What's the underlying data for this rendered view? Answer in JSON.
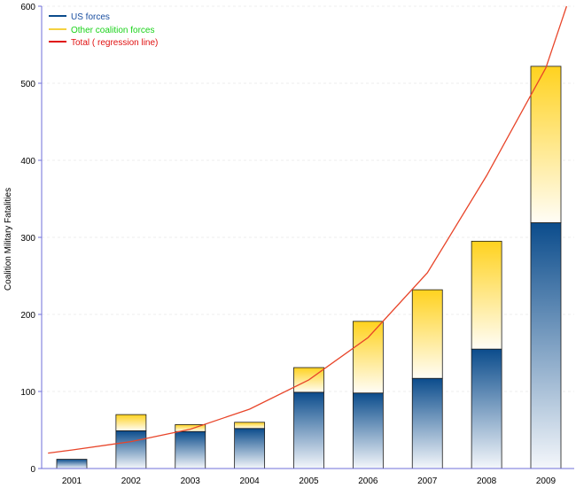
{
  "chart_data": {
    "type": "bar",
    "stacked": true,
    "title": "",
    "xlabel": "",
    "ylabel": "Coalition Military Fatalities",
    "categories": [
      "2001",
      "2002",
      "2003",
      "2004",
      "2005",
      "2006",
      "2007",
      "2008",
      "2009"
    ],
    "series": [
      {
        "name": "US forces",
        "values": [
          12,
          49,
          48,
          52,
          99,
          98,
          117,
          155,
          319
        ]
      },
      {
        "name": "Other coalition forces",
        "values": [
          0,
          21,
          9,
          8,
          32,
          93,
          115,
          140,
          203
        ]
      }
    ],
    "regression": {
      "name": "Total ( regression line)",
      "type": "exponential",
      "x": [
        "2000.6",
        "2001",
        "2002",
        "2003",
        "2004",
        "2005",
        "2006",
        "2007",
        "2008",
        "2009",
        "2009.35"
      ],
      "y": [
        20,
        24,
        35,
        51,
        77,
        115,
        170,
        254,
        380,
        520,
        600
      ]
    },
    "ylim": [
      0,
      600
    ],
    "yticks": [
      0,
      100,
      200,
      300,
      400,
      500,
      600
    ],
    "grid": true,
    "legend_position": "top-left",
    "colors": {
      "us_top": "#0b4c8c",
      "us_bottom": "#f4f7fb",
      "other_top": "#ffd21f",
      "other_bottom": "#fffdf6",
      "regression": "#e8452a",
      "axis": "#6f6fd9",
      "legend_us_text": "#1a4fa0",
      "legend_other_text": "#19d219",
      "legend_total_text": "#e01010",
      "legend_other_swatch": "#f2c200",
      "legend_total_swatch": "#e01010"
    }
  }
}
